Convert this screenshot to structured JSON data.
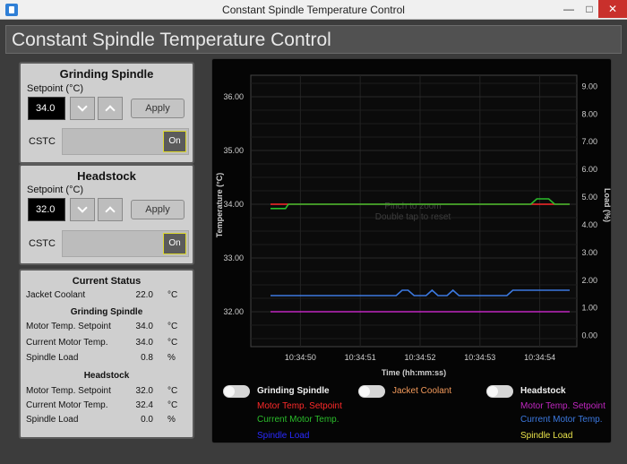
{
  "window": {
    "title": "Constant Spindle Temperature Control",
    "min": "—",
    "max": "□",
    "close": "✕"
  },
  "header": {
    "title": "Constant Spindle Temperature Control"
  },
  "grinding": {
    "title": "Grinding Spindle",
    "setpoint_label": "Setpoint (°C)",
    "setpoint_value": "34.0",
    "apply": "Apply",
    "cstc_label": "CSTC",
    "toggle": "On"
  },
  "headstock": {
    "title": "Headstock",
    "setpoint_label": "Setpoint (°C)",
    "setpoint_value": "32.0",
    "apply": "Apply",
    "cstc_label": "CSTC",
    "toggle": "On"
  },
  "status": {
    "title": "Current Status",
    "jacket": {
      "label": "Jacket Coolant",
      "value": "22.0",
      "unit": "°C"
    },
    "grinding_header": "Grinding Spindle",
    "grinding_rows": [
      {
        "label": "Motor Temp. Setpoint",
        "value": "34.0",
        "unit": "°C"
      },
      {
        "label": "Current Motor Temp.",
        "value": "34.0",
        "unit": "°C"
      },
      {
        "label": "Spindle Load",
        "value": "0.8",
        "unit": "%"
      }
    ],
    "headstock_header": "Headstock",
    "headstock_rows": [
      {
        "label": "Motor Temp. Setpoint",
        "value": "32.0",
        "unit": "°C"
      },
      {
        "label": "Current Motor Temp.",
        "value": "32.4",
        "unit": "°C"
      },
      {
        "label": "Spindle Load",
        "value": "0.0",
        "unit": "%"
      }
    ]
  },
  "chart_data": {
    "type": "line",
    "xlabel": "Time (hh:mm:ss)",
    "ylabel": "Temperature (°C)",
    "y2label": "Load (%)",
    "x_ticks": [
      "10:34:50",
      "10:34:51",
      "10:34:52",
      "10:34:53",
      "10:34:54"
    ],
    "x_range": [
      0,
      5
    ],
    "ylim": [
      31.35,
      36.4
    ],
    "y_ticks": [
      "36.00",
      "35.00",
      "34.00",
      "33.00",
      "32.00"
    ],
    "y2lim": [
      -0.4,
      9.4
    ],
    "y2_ticks": [
      "9.00",
      "8.00",
      "7.00",
      "6.00",
      "5.00",
      "4.00",
      "3.00",
      "2.00",
      "1.00",
      "0.00"
    ],
    "overlay_line1": "Pinch to zoom",
    "overlay_line2": "Double tap to reset",
    "grid": true,
    "series": [
      {
        "name": "Motor Temp. Setpoint",
        "group": "Grinding Spindle",
        "color": "#ff2a2a",
        "axis": "left",
        "x": [
          0,
          5
        ],
        "y": [
          34.0,
          34.0
        ]
      },
      {
        "name": "Current Motor Temp.",
        "group": "Grinding Spindle",
        "color": "#2bbd2b",
        "axis": "left",
        "x": [
          0,
          0.25,
          0.3,
          4.35,
          4.45,
          4.65,
          4.75,
          5
        ],
        "y": [
          33.92,
          33.92,
          34.0,
          34.0,
          34.1,
          34.1,
          34.0,
          34.0
        ]
      },
      {
        "name": "Motor Temp. Setpoint",
        "group": "Headstock",
        "color": "#c026c0",
        "axis": "left",
        "x": [
          0,
          5
        ],
        "y": [
          32.0,
          32.0
        ]
      },
      {
        "name": "Current Motor Temp.",
        "group": "Headstock",
        "color": "#3c79e0",
        "axis": "left",
        "x": [
          0,
          2.1,
          2.2,
          2.3,
          2.4,
          2.6,
          2.7,
          2.8,
          2.95,
          3.05,
          3.15,
          3.95,
          4.05,
          5
        ],
        "y": [
          32.3,
          32.3,
          32.4,
          32.4,
          32.3,
          32.3,
          32.4,
          32.3,
          32.3,
          32.4,
          32.3,
          32.3,
          32.4,
          32.4
        ]
      }
    ]
  },
  "legend": {
    "groups": [
      {
        "title": "Grinding Spindle",
        "items": [
          {
            "label": "Motor Temp. Setpoint",
            "color": "#ff2a2a"
          },
          {
            "label": "Current Motor Temp.",
            "color": "#2bbd2b"
          },
          {
            "label": "Spindle Load",
            "color": "#2a2aff"
          }
        ]
      },
      {
        "title": "Jacket Coolant",
        "color": "#f39a5b",
        "items": []
      },
      {
        "title": "Headstock",
        "items": [
          {
            "label": "Motor Temp. Setpoint",
            "color": "#c026c0"
          },
          {
            "label": "Current Motor Temp.",
            "color": "#3c79e0"
          },
          {
            "label": "Spindle Load",
            "color": "#e8e24a"
          }
        ]
      }
    ]
  }
}
